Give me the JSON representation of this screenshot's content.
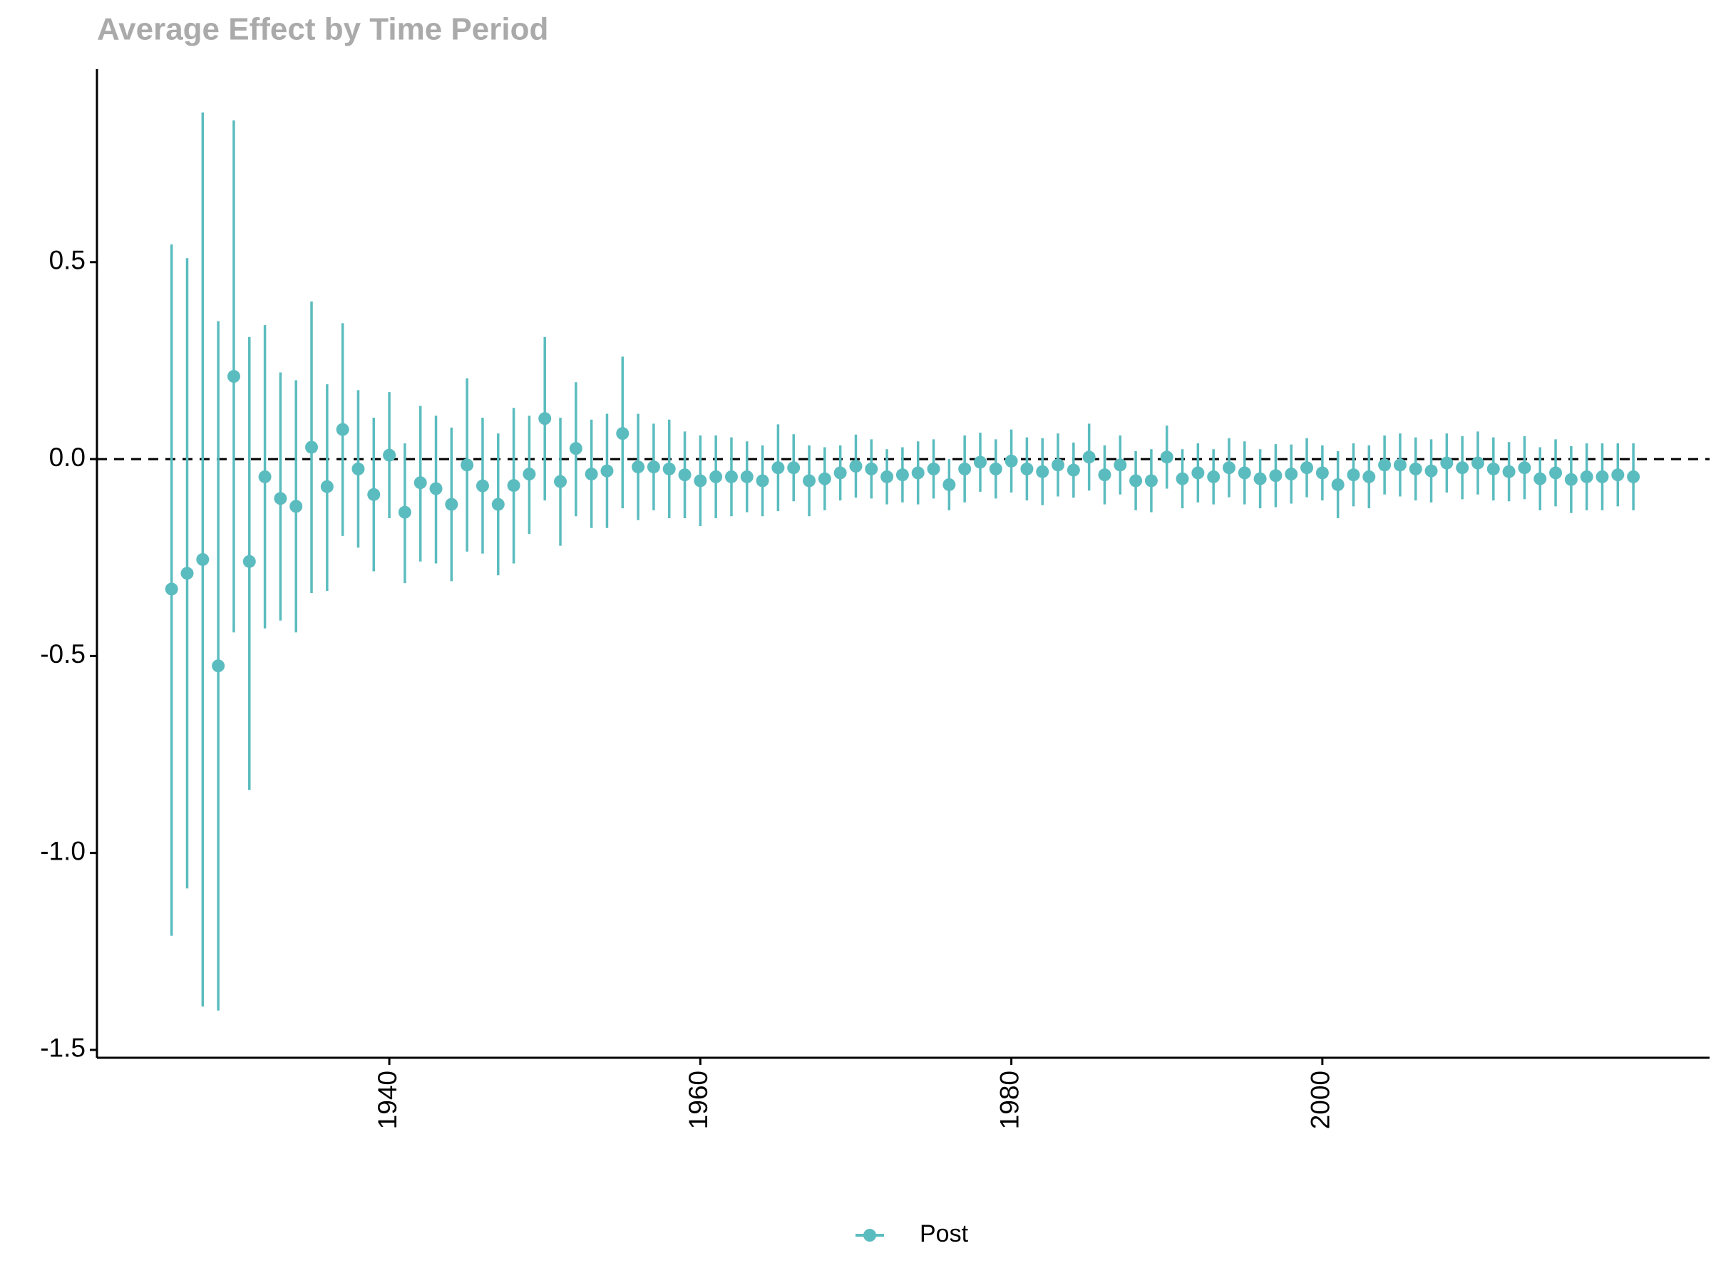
{
  "chart_data": {
    "type": "errorbar",
    "title": "Average Effect by Time Period",
    "x": [
      1926,
      1927,
      1928,
      1929,
      1930,
      1931,
      1932,
      1933,
      1934,
      1935,
      1936,
      1937,
      1938,
      1939,
      1940,
      1941,
      1942,
      1943,
      1944,
      1945,
      1946,
      1947,
      1948,
      1949,
      1950,
      1951,
      1952,
      1953,
      1954,
      1955,
      1956,
      1957,
      1958,
      1959,
      1960,
      1961,
      1962,
      1963,
      1964,
      1965,
      1966,
      1967,
      1968,
      1969,
      1970,
      1971,
      1972,
      1973,
      1974,
      1975,
      1976,
      1977,
      1978,
      1979,
      1980,
      1981,
      1982,
      1983,
      1984,
      1985,
      1986,
      1987,
      1988,
      1989,
      1990,
      1991,
      1992,
      1993,
      1994,
      1995,
      1996,
      1997,
      1998,
      1999,
      2000,
      2001,
      2002,
      2003,
      2004,
      2005,
      2006,
      2007,
      2008,
      2009,
      2010,
      2011,
      2012,
      2013,
      2014,
      2015,
      2016,
      2017,
      2018,
      2019,
      2020
    ],
    "series": [
      {
        "name": "Post",
        "color": "#5bbcbf",
        "values": [
          -0.33,
          -0.29,
          -0.255,
          -0.525,
          0.21,
          -0.26,
          -0.045,
          -0.1,
          -0.12,
          0.03,
          -0.07,
          0.075,
          -0.025,
          -0.09,
          0.01,
          -0.135,
          -0.06,
          -0.075,
          -0.115,
          -0.015,
          -0.068,
          -0.115,
          -0.067,
          -0.038,
          0.103,
          -0.057,
          0.027,
          -0.038,
          -0.03,
          0.065,
          -0.02,
          -0.02,
          -0.025,
          -0.04,
          -0.055,
          -0.045,
          -0.045,
          -0.045,
          -0.055,
          -0.022,
          -0.022,
          -0.055,
          -0.05,
          -0.035,
          -0.018,
          -0.025,
          -0.045,
          -0.04,
          -0.035,
          -0.025,
          -0.065,
          -0.025,
          -0.008,
          -0.025,
          -0.005,
          -0.025,
          -0.032,
          -0.015,
          -0.028,
          0.005,
          -0.04,
          -0.015,
          -0.055,
          -0.055,
          0.005,
          -0.05,
          -0.035,
          -0.045,
          -0.022,
          -0.035,
          -0.05,
          -0.042,
          -0.038,
          -0.022,
          -0.035,
          -0.065,
          -0.04,
          -0.045,
          -0.015,
          -0.015,
          -0.025,
          -0.03,
          -0.01,
          -0.022,
          -0.01,
          -0.025,
          -0.032,
          -0.022,
          -0.05,
          -0.035,
          -0.052,
          -0.045,
          -0.045,
          -0.04,
          -0.045
        ],
        "lower": [
          -1.21,
          -1.09,
          -1.39,
          -1.4,
          -0.44,
          -0.84,
          -0.43,
          -0.41,
          -0.44,
          -0.34,
          -0.335,
          -0.195,
          -0.225,
          -0.285,
          -0.15,
          -0.315,
          -0.26,
          -0.265,
          -0.31,
          -0.235,
          -0.24,
          -0.295,
          -0.265,
          -0.19,
          -0.105,
          -0.22,
          -0.145,
          -0.175,
          -0.175,
          -0.125,
          -0.155,
          -0.13,
          -0.15,
          -0.15,
          -0.17,
          -0.15,
          -0.145,
          -0.135,
          -0.145,
          -0.132,
          -0.107,
          -0.145,
          -0.13,
          -0.105,
          -0.098,
          -0.1,
          -0.115,
          -0.11,
          -0.115,
          -0.1,
          -0.13,
          -0.11,
          -0.083,
          -0.1,
          -0.085,
          -0.105,
          -0.117,
          -0.095,
          -0.098,
          -0.08,
          -0.115,
          -0.09,
          -0.13,
          -0.135,
          -0.075,
          -0.125,
          -0.11,
          -0.115,
          -0.097,
          -0.115,
          -0.125,
          -0.122,
          -0.113,
          -0.097,
          -0.105,
          -0.15,
          -0.12,
          -0.125,
          -0.09,
          -0.095,
          -0.105,
          -0.11,
          -0.085,
          -0.102,
          -0.09,
          -0.105,
          -0.107,
          -0.102,
          -0.13,
          -0.12,
          -0.137,
          -0.13,
          -0.13,
          -0.12,
          -0.13
        ],
        "upper": [
          0.545,
          0.51,
          0.88,
          0.35,
          0.86,
          0.31,
          0.34,
          0.22,
          0.2,
          0.4,
          0.19,
          0.345,
          0.175,
          0.105,
          0.17,
          0.04,
          0.135,
          0.11,
          0.08,
          0.205,
          0.105,
          0.065,
          0.13,
          0.11,
          0.31,
          0.105,
          0.195,
          0.1,
          0.115,
          0.26,
          0.115,
          0.09,
          0.1,
          0.07,
          0.06,
          0.06,
          0.055,
          0.045,
          0.035,
          0.088,
          0.063,
          0.035,
          0.03,
          0.035,
          0.062,
          0.05,
          0.025,
          0.03,
          0.045,
          0.05,
          0,
          0.06,
          0.067,
          0.05,
          0.075,
          0.055,
          0.053,
          0.065,
          0.042,
          0.09,
          0.035,
          0.06,
          0.02,
          0.025,
          0.085,
          0.025,
          0.04,
          0.025,
          0.053,
          0.045,
          0.025,
          0.038,
          0.037,
          0.053,
          0.035,
          0.02,
          0.04,
          0.035,
          0.06,
          0.065,
          0.055,
          0.05,
          0.065,
          0.058,
          0.07,
          0.055,
          0.043,
          0.058,
          0.03,
          0.05,
          0.033,
          0.04,
          0.04,
          0.04,
          0.04
        ]
      }
    ],
    "xlim": [
      1921.2,
      2024.9
    ],
    "xticks": [
      1940,
      1960,
      1980,
      2000
    ],
    "ylim": [
      -1.52,
      0.99
    ],
    "yticks": [
      -1.5,
      {
        "value": -1,
        "label": "-1.0"
      },
      -0.5,
      {
        "value": 0,
        "label": "0.0"
      },
      0.5
    ],
    "reference_line": 0,
    "legend": "bottom"
  }
}
